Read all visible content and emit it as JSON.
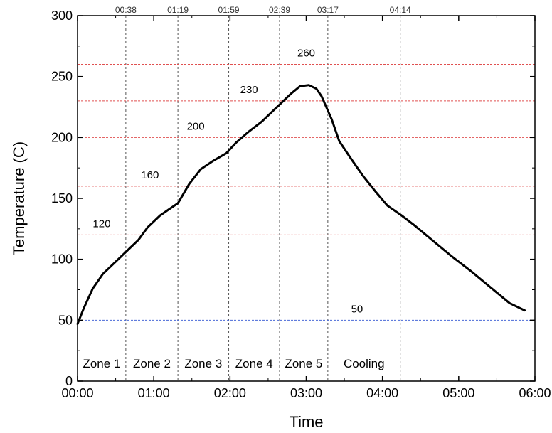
{
  "chart_data": {
    "type": "line",
    "xlabel": "Time",
    "ylabel": "Temperature (C)",
    "xlim": [
      0,
      360
    ],
    "ylim": [
      0,
      300
    ],
    "x_ticks": [
      {
        "value": 0,
        "label": "00:00"
      },
      {
        "value": 60,
        "label": "01:00"
      },
      {
        "value": 120,
        "label": "02:00"
      },
      {
        "value": 180,
        "label": "03:00"
      },
      {
        "value": 240,
        "label": "04:00"
      },
      {
        "value": 300,
        "label": "05:00"
      },
      {
        "value": 360,
        "label": "06:00"
      }
    ],
    "y_ticks": [
      0,
      50,
      100,
      150,
      200,
      250,
      300
    ],
    "zone_boundaries": [
      {
        "value": 38,
        "label": "00:38"
      },
      {
        "value": 79,
        "label": "01:19"
      },
      {
        "value": 119,
        "label": "01:59"
      },
      {
        "value": 159,
        "label": "02:39"
      },
      {
        "value": 197,
        "label": "03:17"
      },
      {
        "value": 254,
        "label": "04:14"
      }
    ],
    "threshold_lines": [
      {
        "y": 260,
        "label": "260",
        "color": "#e05050",
        "label_x": 180
      },
      {
        "y": 230,
        "label": "230",
        "color": "#e05050",
        "label_x": 135
      },
      {
        "y": 200,
        "label": "200",
        "color": "#e05050",
        "label_x": 93
      },
      {
        "y": 160,
        "label": "160",
        "color": "#e05050",
        "label_x": 57
      },
      {
        "y": 120,
        "label": "120",
        "color": "#e05050",
        "label_x": 19
      },
      {
        "y": 50,
        "label": "50",
        "color": "#4a6ad8",
        "label_x": 220
      }
    ],
    "zones": [
      {
        "label": "Zone 1",
        "x": 19
      },
      {
        "label": "Zone 2",
        "x": 58.5
      },
      {
        "label": "Zone 3",
        "x": 99
      },
      {
        "label": "Zone 4",
        "x": 139
      },
      {
        "label": "Zone 5",
        "x": 178
      },
      {
        "label": "Cooling",
        "x": 225.5
      }
    ],
    "series": [
      {
        "color": "#000000",
        "points": [
          [
            0,
            47
          ],
          [
            5,
            60
          ],
          [
            12,
            76
          ],
          [
            20,
            88
          ],
          [
            30,
            98
          ],
          [
            40,
            108
          ],
          [
            48,
            116
          ],
          [
            55,
            126
          ],
          [
            65,
            136
          ],
          [
            72,
            141
          ],
          [
            79,
            146
          ],
          [
            88,
            162
          ],
          [
            97,
            174
          ],
          [
            107,
            181
          ],
          [
            117,
            187
          ],
          [
            125,
            196
          ],
          [
            135,
            205
          ],
          [
            145,
            213
          ],
          [
            152,
            220
          ],
          [
            160,
            228
          ],
          [
            168,
            236
          ],
          [
            175,
            242
          ],
          [
            182,
            243
          ],
          [
            188,
            240
          ],
          [
            192,
            234
          ],
          [
            200,
            215
          ],
          [
            206,
            197
          ],
          [
            215,
            183
          ],
          [
            225,
            168
          ],
          [
            235,
            155
          ],
          [
            244,
            144
          ],
          [
            255,
            136
          ],
          [
            265,
            128
          ],
          [
            280,
            115
          ],
          [
            295,
            102
          ],
          [
            310,
            90
          ],
          [
            325,
            77
          ],
          [
            340,
            64
          ],
          [
            352,
            58
          ]
        ]
      }
    ]
  }
}
